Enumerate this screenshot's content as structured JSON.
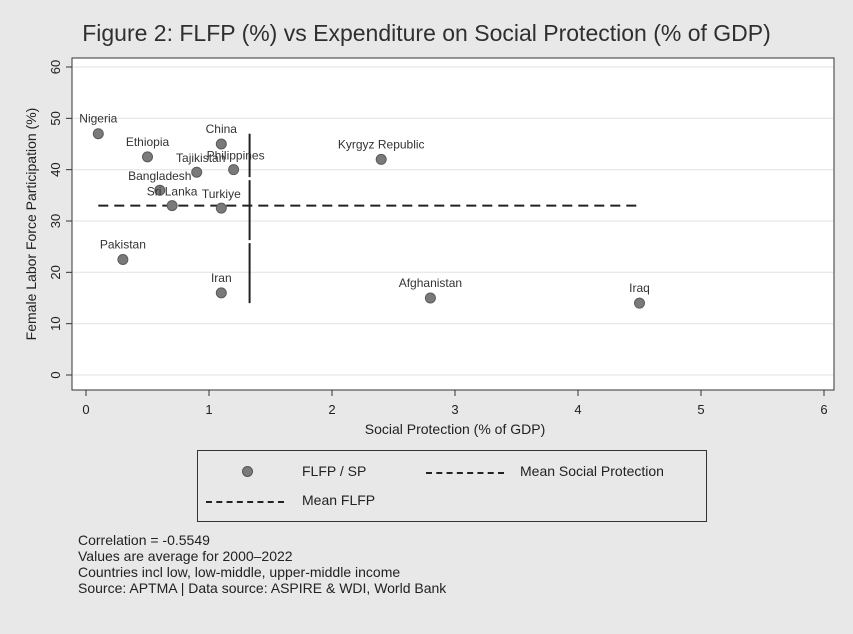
{
  "chart_data": {
    "type": "scatter",
    "title": "Figure 2: FLFP (%) vs Expenditure on Social Protection (% of GDP)",
    "xlabel": "Social Protection (% of GDP)",
    "ylabel": "Female Labor Force Participation (%)",
    "xlim": [
      0,
      6
    ],
    "ylim": [
      0,
      60
    ],
    "xticks": [
      0,
      1,
      2,
      3,
      4,
      5,
      6
    ],
    "yticks": [
      0,
      10,
      20,
      30,
      40,
      50,
      60
    ],
    "grid": true,
    "points": [
      {
        "label": "Nigeria",
        "x": 0.1,
        "y": 47
      },
      {
        "label": "Ethiopia",
        "x": 0.5,
        "y": 42.5
      },
      {
        "label": "China",
        "x": 1.1,
        "y": 45
      },
      {
        "label": "Tajikistan",
        "x": 0.9,
        "y": 39.5
      },
      {
        "label": "Philippines",
        "x": 1.2,
        "y": 40
      },
      {
        "label": "Kyrgyz Republic",
        "x": 2.4,
        "y": 42
      },
      {
        "label": "Bangladesh",
        "x": 0.6,
        "y": 36
      },
      {
        "label": "Sri Lanka",
        "x": 0.7,
        "y": 33
      },
      {
        "label": "Turkiye",
        "x": 1.1,
        "y": 32.5
      },
      {
        "label": "Pakistan",
        "x": 0.3,
        "y": 22.5
      },
      {
        "label": "Iran",
        "x": 1.1,
        "y": 16
      },
      {
        "label": "Afghanistan",
        "x": 2.8,
        "y": 15
      },
      {
        "label": "Iraq",
        "x": 4.5,
        "y": 14
      }
    ],
    "mean_flfp": {
      "y": 33,
      "x_range": [
        0.1,
        4.5
      ]
    },
    "mean_social_protection": {
      "x": 1.33,
      "y_range": [
        14,
        47
      ]
    },
    "legend": {
      "placement": "bottom",
      "items": [
        "FLFP / SP",
        "Mean Social Protection",
        "Mean FLFP"
      ]
    }
  },
  "notes": [
    "Correlation = -0.5549",
    "Values are average for 2000–2022",
    "Countries incl low, low-middle, upper-middle income",
    "Source: APTMA | Data source: ASPIRE & WDI, World Bank"
  ],
  "colors": {
    "background": "#e8e8e8",
    "plot_bg": "#ffffff",
    "marker": "#7a7a7a",
    "line": "#222222",
    "grid": "#e6e6e6"
  }
}
